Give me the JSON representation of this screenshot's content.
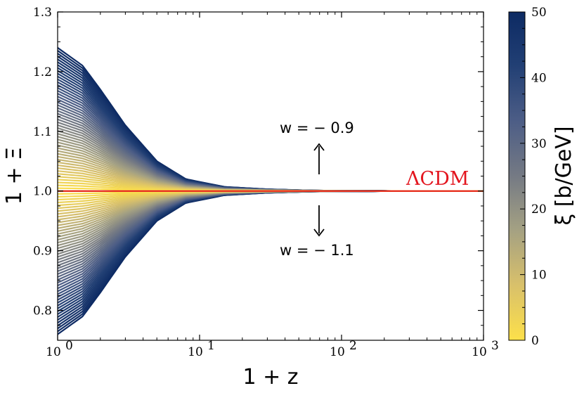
{
  "chart_data": {
    "type": "line",
    "xlabel": "1 + z",
    "ylabel": "1 + Ξ",
    "xscale": "log",
    "xlim": [
      1,
      1000
    ],
    "ylim": [
      0.75,
      1.3
    ],
    "x_ticks": [
      1,
      10,
      100,
      1000
    ],
    "x_tick_labels": [
      {
        "base": "10",
        "exp": "0"
      },
      {
        "base": "10",
        "exp": "1"
      },
      {
        "base": "10",
        "exp": "2"
      },
      {
        "base": "10",
        "exp": "3"
      }
    ],
    "y_ticks": [
      0.8,
      0.9,
      1.0,
      1.1,
      1.2,
      1.3
    ],
    "y_tick_labels": [
      "0.8",
      "0.9",
      "1.0",
      "1.1",
      "1.2",
      "1.3"
    ],
    "grid": false,
    "upper_family": {
      "w": -0.9,
      "label": "w = − 0.9",
      "xi_range": [
        0,
        50
      ],
      "curve_count": 51,
      "x": [
        1,
        1.5,
        2,
        3,
        5,
        8,
        15,
        30,
        60,
        100,
        300,
        1000
      ],
      "y_at_xi_max": [
        1.24,
        1.21,
        1.17,
        1.11,
        1.05,
        1.02,
        1.007,
        1.003,
        1.001,
        1.0005,
        1.0001,
        1.0
      ]
    },
    "lower_family": {
      "w": -1.1,
      "label": "w = − 1.1",
      "xi_range": [
        0,
        50
      ],
      "curve_count": 51,
      "x": [
        1,
        1.5,
        2,
        3,
        5,
        8,
        15,
        30,
        60,
        100,
        300,
        1000
      ],
      "y_at_xi_max": [
        0.76,
        0.79,
        0.83,
        0.89,
        0.95,
        0.98,
        0.993,
        0.997,
        0.999,
        0.9995,
        0.9999,
        1.0
      ]
    },
    "reference_line": {
      "name": "ΛCDM",
      "y": 1.0,
      "color": "#e3141d"
    },
    "annotations": {
      "upper_text": "w = − 0.9",
      "lower_text": "w = − 1.1",
      "lcdm_text": "ΛCDM"
    },
    "colorbar": {
      "label": "ξ  [b/GeV]",
      "range": [
        0,
        50
      ],
      "ticks": [
        0,
        10,
        20,
        30,
        40,
        50
      ],
      "tick_labels": [
        "0",
        "10",
        "20",
        "30",
        "40",
        "50"
      ],
      "colors": [
        "#fde04a",
        "#d8c06b",
        "#a3a083",
        "#757a84",
        "#4c5d86",
        "#213f74",
        "#0d2a63"
      ]
    }
  }
}
